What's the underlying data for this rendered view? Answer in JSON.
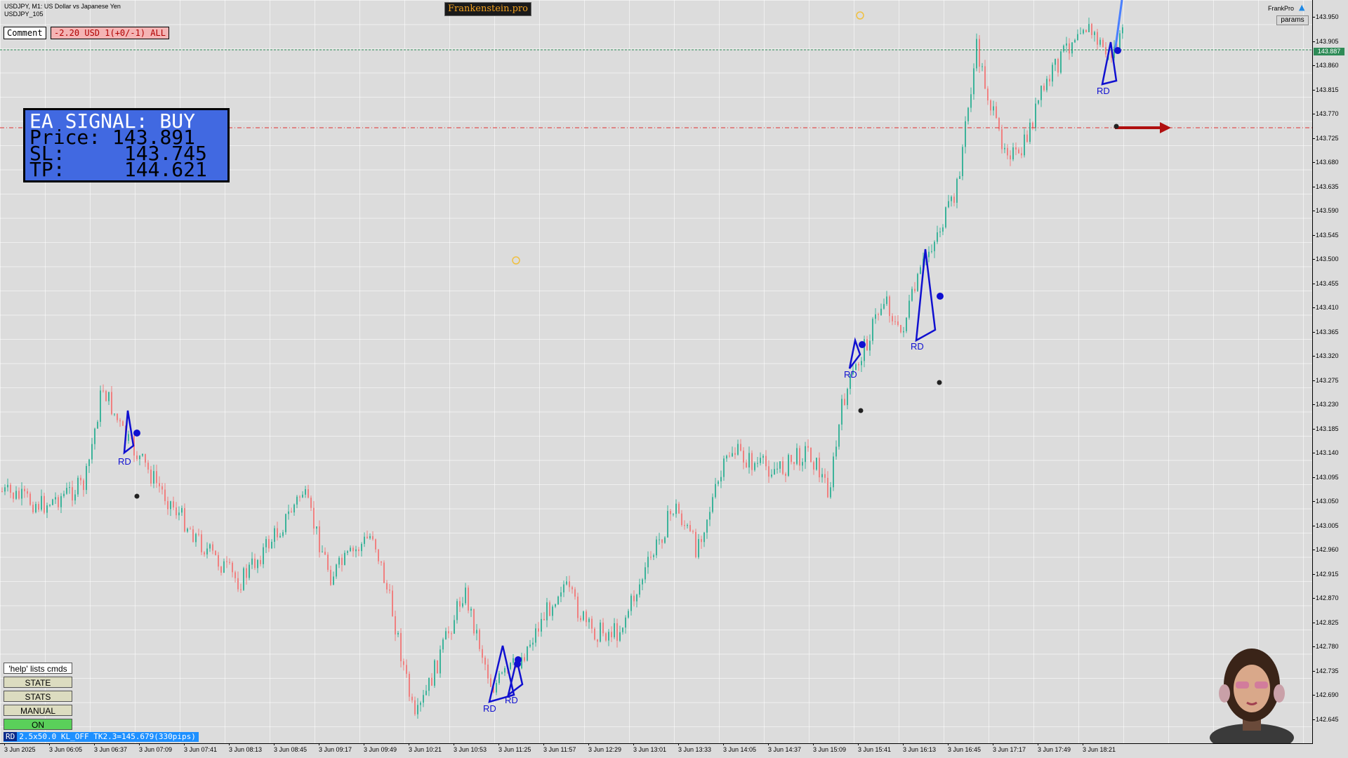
{
  "symbol": {
    "title_line": "USDJPY, M1:  US Dollar vs Japanese Yen",
    "subtitle": "USDJPY_105"
  },
  "brand": "Frankenstein.pro",
  "comment_label": "Comment",
  "pnl_text": "-2.20 USD 1(+0/-1) ALL",
  "signal": {
    "header": "EA SIGNAL: BUY",
    "price_label": "Price:",
    "price_value": "143.891",
    "sl_label": "SL:",
    "sl_value": "143.745",
    "tp_label": "TP:",
    "tp_value": "144.621"
  },
  "top_right": {
    "name": "FrankPro",
    "params_label": "params",
    "icon": "graduation-cap-icon"
  },
  "side_buttons": {
    "help": "'help' lists cmds",
    "state": "STATE",
    "stats": "STATS",
    "manual": "MANUAL",
    "on": "ON"
  },
  "status_bar": {
    "tag": "RD",
    "text": "2.5x50.0 KL_OFF TK2.3=145.679(330pips)"
  },
  "current_price": "143.887",
  "price_axis": [
    "143.950",
    "143.905",
    "143.860",
    "143.815",
    "143.770",
    "143.725",
    "143.680",
    "143.635",
    "143.590",
    "143.545",
    "143.500",
    "143.455",
    "143.410",
    "143.365",
    "143.320",
    "143.275",
    "143.230",
    "143.185",
    "143.140",
    "143.095",
    "143.050",
    "143.005",
    "142.960",
    "142.915",
    "142.870",
    "142.825",
    "142.780",
    "142.735",
    "142.690",
    "142.645"
  ],
  "time_axis": [
    "3 Jun 2025",
    "3 Jun 06:05",
    "3 Jun 06:37",
    "3 Jun 07:09",
    "3 Jun 07:41",
    "3 Jun 08:13",
    "3 Jun 08:45",
    "3 Jun 09:17",
    "3 Jun 09:49",
    "3 Jun 10:21",
    "3 Jun 10:53",
    "3 Jun 11:25",
    "3 Jun 11:57",
    "3 Jun 12:29",
    "3 Jun 13:01",
    "3 Jun 13:33",
    "3 Jun 14:05",
    "3 Jun 14:37",
    "3 Jun 15:09",
    "3 Jun 15:41",
    "3 Jun 16:13",
    "3 Jun 16:45",
    "3 Jun 17:17",
    "3 Jun 17:49",
    "3 Jun 18:21"
  ],
  "pattern_label": "RD",
  "colors": {
    "bull": "#3cb39a",
    "bear": "#f08080",
    "pattern": "#1010d0",
    "sl_line": "#e03030",
    "tp_line": "#2e8b57",
    "signal_bg": "#4169e1"
  }
}
